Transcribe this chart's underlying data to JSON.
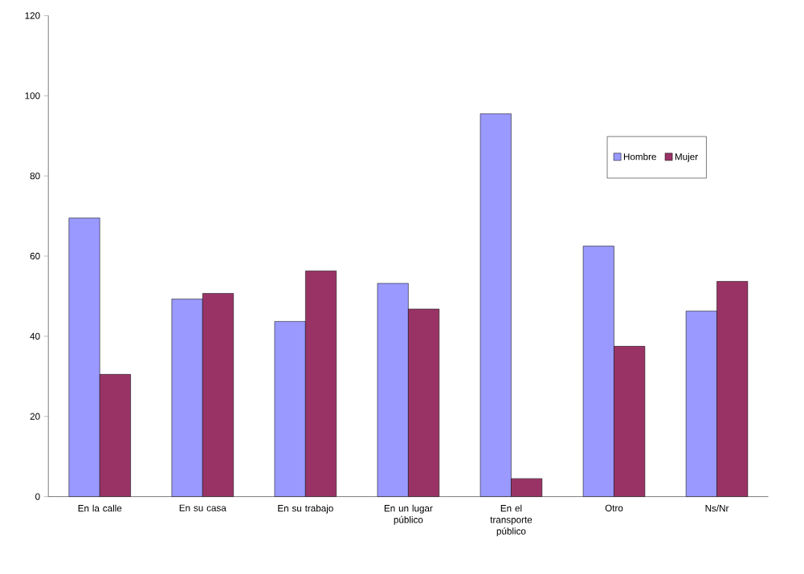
{
  "chart_data": {
    "type": "bar",
    "categories": [
      "En la calle",
      "En su casa",
      "En su trabajo",
      "En un lugar público",
      "En el transporte público",
      "Otro",
      "Ns/Nr"
    ],
    "series": [
      {
        "name": "Hombre",
        "color": "#9999ff",
        "values": [
          69.5,
          49.3,
          43.7,
          53.2,
          95.5,
          62.5,
          46.3
        ]
      },
      {
        "name": "Mujer",
        "color": "#993366",
        "values": [
          30.5,
          50.7,
          56.3,
          46.8,
          4.5,
          37.5,
          53.7
        ]
      }
    ],
    "ylim": [
      0,
      120
    ],
    "yticks": [
      0,
      20,
      40,
      60,
      80,
      100,
      120
    ],
    "grid": false,
    "legend": "top right"
  }
}
